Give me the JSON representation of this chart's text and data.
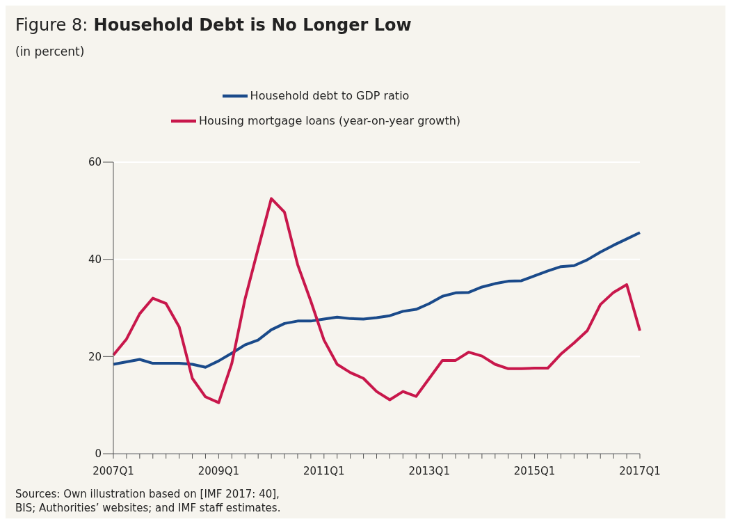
{
  "chart_data": {
    "type": "line",
    "title": "Figure 8: Household Debt is No Longer Low",
    "subtitle": "(in percent)",
    "categories": [
      "2007Q1",
      null,
      null,
      null,
      null,
      null,
      null,
      null,
      "2009Q1",
      null,
      null,
      null,
      null,
      null,
      null,
      null,
      "2011Q1",
      null,
      null,
      null,
      null,
      null,
      null,
      null,
      "2013Q1",
      null,
      null,
      null,
      null,
      null,
      null,
      null,
      "2015Q1",
      null,
      null,
      null,
      null,
      null,
      null,
      null,
      "2017Q1"
    ],
    "series": [
      {
        "name": "Household debt to GDP ratio",
        "color": "#1a4a8a",
        "values": [
          18.4,
          18.9,
          19.4,
          18.6,
          18.6,
          18.6,
          18.4,
          17.8,
          19.1,
          20.7,
          22.4,
          23.4,
          25.5,
          26.8,
          27.3,
          27.3,
          27.7,
          28.1,
          27.8,
          27.7,
          28.0,
          28.4,
          29.3,
          29.7,
          30.9,
          32.4,
          33.1,
          33.2,
          34.3,
          35.0,
          35.5,
          35.6,
          36.6,
          37.6,
          38.5,
          38.7,
          39.9,
          41.5,
          42.9,
          44.2,
          45.5
        ]
      },
      {
        "name": "Housing mortgage loans (year-on-year growth)",
        "color": "#c8174b",
        "values": [
          20.3,
          23.6,
          28.8,
          32.0,
          30.9,
          26.1,
          15.5,
          11.7,
          10.5,
          18.6,
          31.8,
          42.2,
          52.5,
          49.7,
          38.9,
          31.4,
          23.4,
          18.4,
          16.7,
          15.5,
          12.8,
          11.1,
          12.8,
          11.8,
          15.5,
          19.2,
          19.2,
          20.9,
          20.1,
          18.4,
          17.5,
          17.5,
          17.6,
          17.6,
          20.5,
          22.8,
          25.3,
          30.7,
          33.2,
          34.8,
          25.3
        ]
      }
    ],
    "ylim": [
      0,
      60
    ],
    "yticks": [
      0,
      20,
      40,
      60
    ],
    "grid": "y",
    "legend": "top",
    "marker": "none",
    "line_style": "solid",
    "annotations": [
      "Sources: Own illustration based on [IMF 2017: 40],",
      "BIS; Authorities’ websites; and IMF staff estimates."
    ]
  }
}
